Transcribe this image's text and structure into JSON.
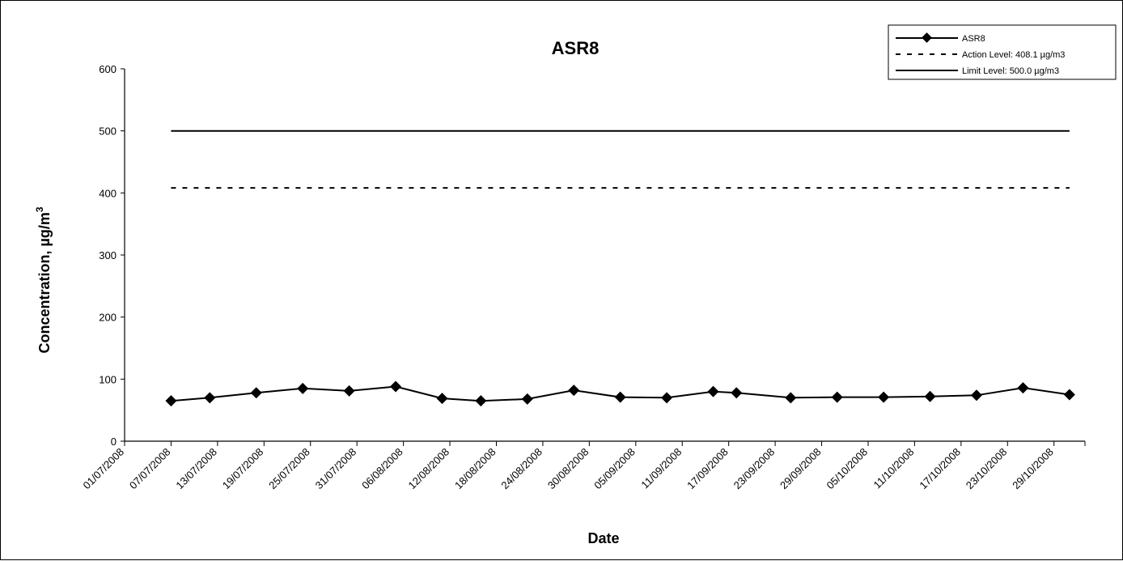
{
  "chart_data": {
    "type": "line",
    "title": "ASR8",
    "xlabel": "Date",
    "ylabel": "Concentration, µg/m",
    "ylabel_superscript": "3",
    "ylim": [
      0,
      600
    ],
    "yticks": [
      0,
      100,
      200,
      300,
      400,
      500,
      600
    ],
    "xlim": [
      "2008-07-01",
      "2008-11-02"
    ],
    "xtick_labels": [
      "01/07/2008",
      "07/07/2008",
      "13/07/2008",
      "19/07/2008",
      "25/07/2008",
      "31/07/2008",
      "06/08/2008",
      "12/08/2008",
      "18/08/2008",
      "24/08/2008",
      "30/08/2008",
      "05/09/2008",
      "11/09/2008",
      "17/09/2008",
      "23/09/2008",
      "29/09/2008",
      "05/10/2008",
      "11/10/2008",
      "17/10/2008",
      "23/10/2008",
      "29/10/2008"
    ],
    "xticks": [
      "2008-07-01",
      "2008-07-07",
      "2008-07-13",
      "2008-07-19",
      "2008-07-25",
      "2008-07-31",
      "2008-08-06",
      "2008-08-12",
      "2008-08-18",
      "2008-08-24",
      "2008-08-30",
      "2008-09-05",
      "2008-09-11",
      "2008-09-17",
      "2008-09-23",
      "2008-09-29",
      "2008-10-05",
      "2008-10-11",
      "2008-10-17",
      "2008-10-23",
      "2008-10-29"
    ],
    "grid": false,
    "legend_position": "top-right",
    "series": [
      {
        "name": "ASR8",
        "color": "#000000",
        "style": "solid-diamond",
        "x": [
          "2008-07-07",
          "2008-07-12",
          "2008-07-18",
          "2008-07-24",
          "2008-07-30",
          "2008-08-05",
          "2008-08-11",
          "2008-08-16",
          "2008-08-22",
          "2008-08-28",
          "2008-09-03",
          "2008-09-09",
          "2008-09-15",
          "2008-09-18",
          "2008-09-25",
          "2008-10-01",
          "2008-10-07",
          "2008-10-13",
          "2008-10-19",
          "2008-10-25",
          "2008-10-31"
        ],
        "y": [
          65,
          70,
          78,
          85,
          81,
          88,
          69,
          65,
          68,
          82,
          71,
          70,
          80,
          78,
          70,
          71,
          71,
          72,
          74,
          86,
          75
        ]
      },
      {
        "name": "Action Level: 408.1 µg/m3",
        "color": "#000000",
        "style": "dashed",
        "x": [
          "2008-07-07",
          "2008-10-31"
        ],
        "y": [
          408.1,
          408.1
        ]
      },
      {
        "name": "Limit Level: 500.0 µg/m3",
        "color": "#000000",
        "style": "solid",
        "x": [
          "2008-07-07",
          "2008-10-31"
        ],
        "y": [
          500.0,
          500.0
        ]
      }
    ]
  }
}
